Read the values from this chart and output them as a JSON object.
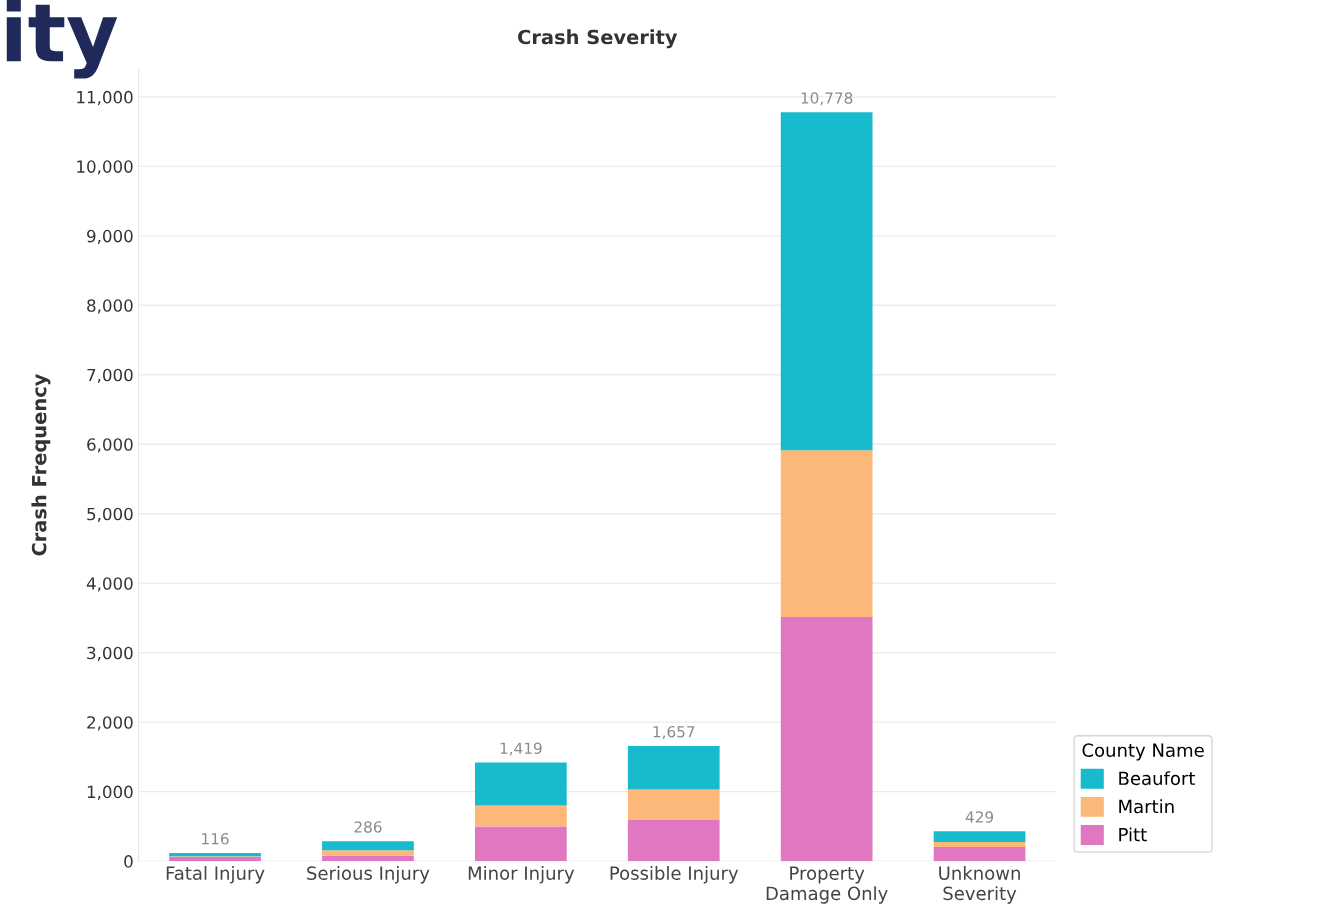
{
  "chart_data": {
    "type": "bar",
    "stacked": true,
    "title": "Crash Severity",
    "ylabel": "Crash Frequency",
    "legend_title": "County Name",
    "categories": [
      "Fatal Injury",
      "Serious Injury",
      "Minor Injury",
      "Possible Injury",
      "Property\nDamage Only",
      "Unknown\nSeverity"
    ],
    "series": [
      {
        "name": "Pitt",
        "color": "#e077c1",
        "values": [
          62,
          76,
          500,
          600,
          3514,
          204
        ]
      },
      {
        "name": "Martin",
        "color": "#fbb878",
        "values": [
          10,
          81,
          300,
          430,
          2400,
          72
        ]
      },
      {
        "name": "Beaufort",
        "color": "#17bbcd",
        "values": [
          44,
          129,
          619,
          627,
          4864,
          153
        ]
      }
    ],
    "totals": [
      "116",
      "286",
      "1,419",
      "1,657",
      "10,778",
      "429"
    ],
    "ylim": [
      0,
      11400
    ],
    "yticks": [
      {
        "value": 0,
        "label": "0"
      },
      {
        "value": 1000,
        "label": "1,000"
      },
      {
        "value": 2000,
        "label": "2,000"
      },
      {
        "value": 3000,
        "label": "3,000"
      },
      {
        "value": 4000,
        "label": "4,000"
      },
      {
        "value": 5000,
        "label": "5,000"
      },
      {
        "value": 6000,
        "label": "6,000"
      },
      {
        "value": 7000,
        "label": "7,000"
      },
      {
        "value": 8000,
        "label": "8,000"
      },
      {
        "value": 9000,
        "label": "9,000"
      },
      {
        "value": 10000,
        "label": "10,000"
      },
      {
        "value": 11000,
        "label": "11,000"
      }
    ],
    "grid": "y",
    "legend": "bottom right",
    "annotations": [
      "ity"
    ]
  }
}
